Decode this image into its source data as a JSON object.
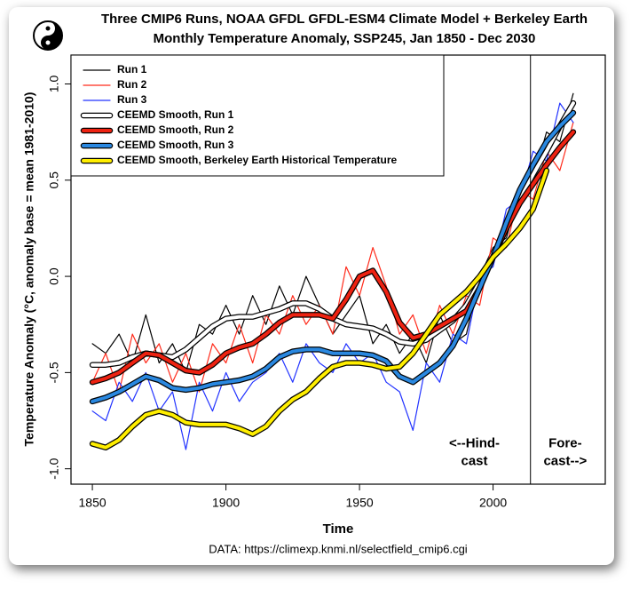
{
  "chart_data": {
    "type": "line",
    "title": "Three CMIP6 Runs, NOAA GFDL GFDL-ESM4 Climate Model + Berkeley Earth",
    "subtitle": "Monthly Temperature Anomaly, SSP245, Jan 1850 - Dec 2030",
    "x_label": "Time",
    "y_label": "Temperature Anomaly (°C, anomaly base = mean 1981-2010)",
    "source": "DATA: https://climexp.knmi.nl/selectfield_cmip6.cgi",
    "annotations": [
      {
        "x": 1993,
        "y": -0.87,
        "lines": [
          "<--Hind-",
          "cast"
        ]
      },
      {
        "x": 2027,
        "y": -0.87,
        "lines": [
          "Fore-",
          "cast-->"
        ]
      }
    ],
    "vline": 2014,
    "legend": "upper left",
    "xlim": [
      1842,
      2042
    ],
    "xticks": [
      1850,
      1900,
      1950,
      2000
    ],
    "ylim": [
      -1.08,
      1.15
    ],
    "yticks": [
      {
        "value": -1,
        "label": "-1.0"
      },
      -0.5,
      {
        "value": 0,
        "label": "0.0"
      },
      0.5,
      {
        "value": 1,
        "label": "1.0"
      }
    ],
    "x": [
      1850,
      1855,
      1860,
      1865,
      1870,
      1875,
      1880,
      1885,
      1890,
      1895,
      1900,
      1905,
      1910,
      1915,
      1920,
      1925,
      1930,
      1935,
      1940,
      1945,
      1950,
      1955,
      1960,
      1965,
      1970,
      1975,
      1980,
      1985,
      1990,
      1995,
      2000,
      2005,
      2010,
      2015,
      2020,
      2025,
      2030
    ],
    "series": [
      {
        "name": "Run 1",
        "color": "#000000",
        "width": 1.2,
        "outline": false,
        "values": [
          -0.35,
          -0.4,
          -0.3,
          -0.45,
          -0.2,
          -0.45,
          -0.35,
          -0.5,
          -0.25,
          -0.3,
          -0.15,
          -0.3,
          -0.1,
          -0.25,
          -0.05,
          -0.2,
          0,
          -0.15,
          -0.3,
          -0.2,
          -0.1,
          -0.35,
          -0.25,
          -0.4,
          -0.3,
          -0.45,
          -0.2,
          -0.35,
          -0.3,
          0,
          0.15,
          0.2,
          0.45,
          0.5,
          0.75,
          0.7,
          0.95
        ]
      },
      {
        "name": "Run 2",
        "color": "#ff2a1a",
        "width": 1.2,
        "outline": false,
        "values": [
          -0.55,
          -0.4,
          -0.6,
          -0.3,
          -0.45,
          -0.35,
          -0.55,
          -0.4,
          -0.6,
          -0.35,
          -0.45,
          -0.25,
          -0.45,
          -0.2,
          -0.3,
          -0.1,
          -0.25,
          -0.15,
          -0.3,
          0.05,
          -0.1,
          0.15,
          -0.05,
          -0.3,
          -0.2,
          -0.4,
          -0.15,
          -0.3,
          -0.1,
          -0.15,
          0.2,
          0.15,
          0.45,
          0.4,
          0.65,
          0.55,
          0.8
        ]
      },
      {
        "name": "Run 3",
        "color": "#2233ff",
        "width": 1.2,
        "outline": false,
        "values": [
          -0.7,
          -0.75,
          -0.55,
          -0.65,
          -0.5,
          -0.7,
          -0.6,
          -0.9,
          -0.55,
          -0.7,
          -0.5,
          -0.65,
          -0.55,
          -0.5,
          -0.4,
          -0.55,
          -0.35,
          -0.45,
          -0.5,
          -0.35,
          -0.45,
          -0.4,
          -0.55,
          -0.6,
          -0.8,
          -0.45,
          -0.55,
          -0.3,
          -0.35,
          0,
          0.05,
          0.35,
          0.4,
          0.65,
          0.6,
          0.9,
          0.8
        ]
      },
      {
        "name": "CEEMD Smooth, Run 1",
        "color": "#ffffff",
        "width": 4,
        "outline": true,
        "values": [
          -0.46,
          -0.46,
          -0.45,
          -0.42,
          -0.4,
          -0.41,
          -0.42,
          -0.38,
          -0.32,
          -0.26,
          -0.22,
          -0.21,
          -0.21,
          -0.19,
          -0.17,
          -0.14,
          -0.14,
          -0.17,
          -0.22,
          -0.25,
          -0.26,
          -0.27,
          -0.3,
          -0.34,
          -0.35,
          -0.33,
          -0.28,
          -0.23,
          -0.15,
          -0.03,
          0.1,
          0.25,
          0.4,
          0.53,
          0.65,
          0.78,
          0.9
        ]
      },
      {
        "name": "CEEMD Smooth, Run 2",
        "color": "#ee2211",
        "width": 4,
        "outline": true,
        "values": [
          -0.55,
          -0.53,
          -0.5,
          -0.45,
          -0.4,
          -0.41,
          -0.45,
          -0.49,
          -0.5,
          -0.46,
          -0.4,
          -0.37,
          -0.35,
          -0.3,
          -0.24,
          -0.2,
          -0.2,
          -0.2,
          -0.22,
          -0.12,
          0,
          0.03,
          -0.08,
          -0.24,
          -0.32,
          -0.3,
          -0.26,
          -0.22,
          -0.18,
          -0.06,
          0.1,
          0.25,
          0.38,
          0.48,
          0.58,
          0.67,
          0.75
        ]
      },
      {
        "name": "CEEMD Smooth, Run 3",
        "color": "#2a88e0",
        "width": 4,
        "outline": true,
        "values": [
          -0.65,
          -0.63,
          -0.6,
          -0.56,
          -0.52,
          -0.54,
          -0.58,
          -0.59,
          -0.58,
          -0.56,
          -0.55,
          -0.54,
          -0.52,
          -0.48,
          -0.42,
          -0.39,
          -0.38,
          -0.38,
          -0.4,
          -0.4,
          -0.4,
          -0.41,
          -0.44,
          -0.52,
          -0.55,
          -0.5,
          -0.45,
          -0.36,
          -0.22,
          -0.06,
          0.1,
          0.28,
          0.45,
          0.58,
          0.7,
          0.78,
          0.85
        ]
      },
      {
        "name": "CEEMD Smooth, Berkeley Earth Historical Temperature",
        "color": "#ffee00",
        "width": 4,
        "outline": true,
        "values": [
          -0.87,
          -0.89,
          -0.85,
          -0.78,
          -0.72,
          -0.7,
          -0.72,
          -0.76,
          -0.77,
          -0.77,
          -0.77,
          -0.79,
          -0.82,
          -0.78,
          -0.7,
          -0.64,
          -0.6,
          -0.53,
          -0.47,
          -0.45,
          -0.45,
          -0.46,
          -0.48,
          -0.47,
          -0.4,
          -0.3,
          -0.2,
          -0.14,
          -0.08,
          0,
          0.1,
          0.17,
          0.25,
          0.35,
          0.55,
          null,
          null
        ]
      }
    ]
  }
}
